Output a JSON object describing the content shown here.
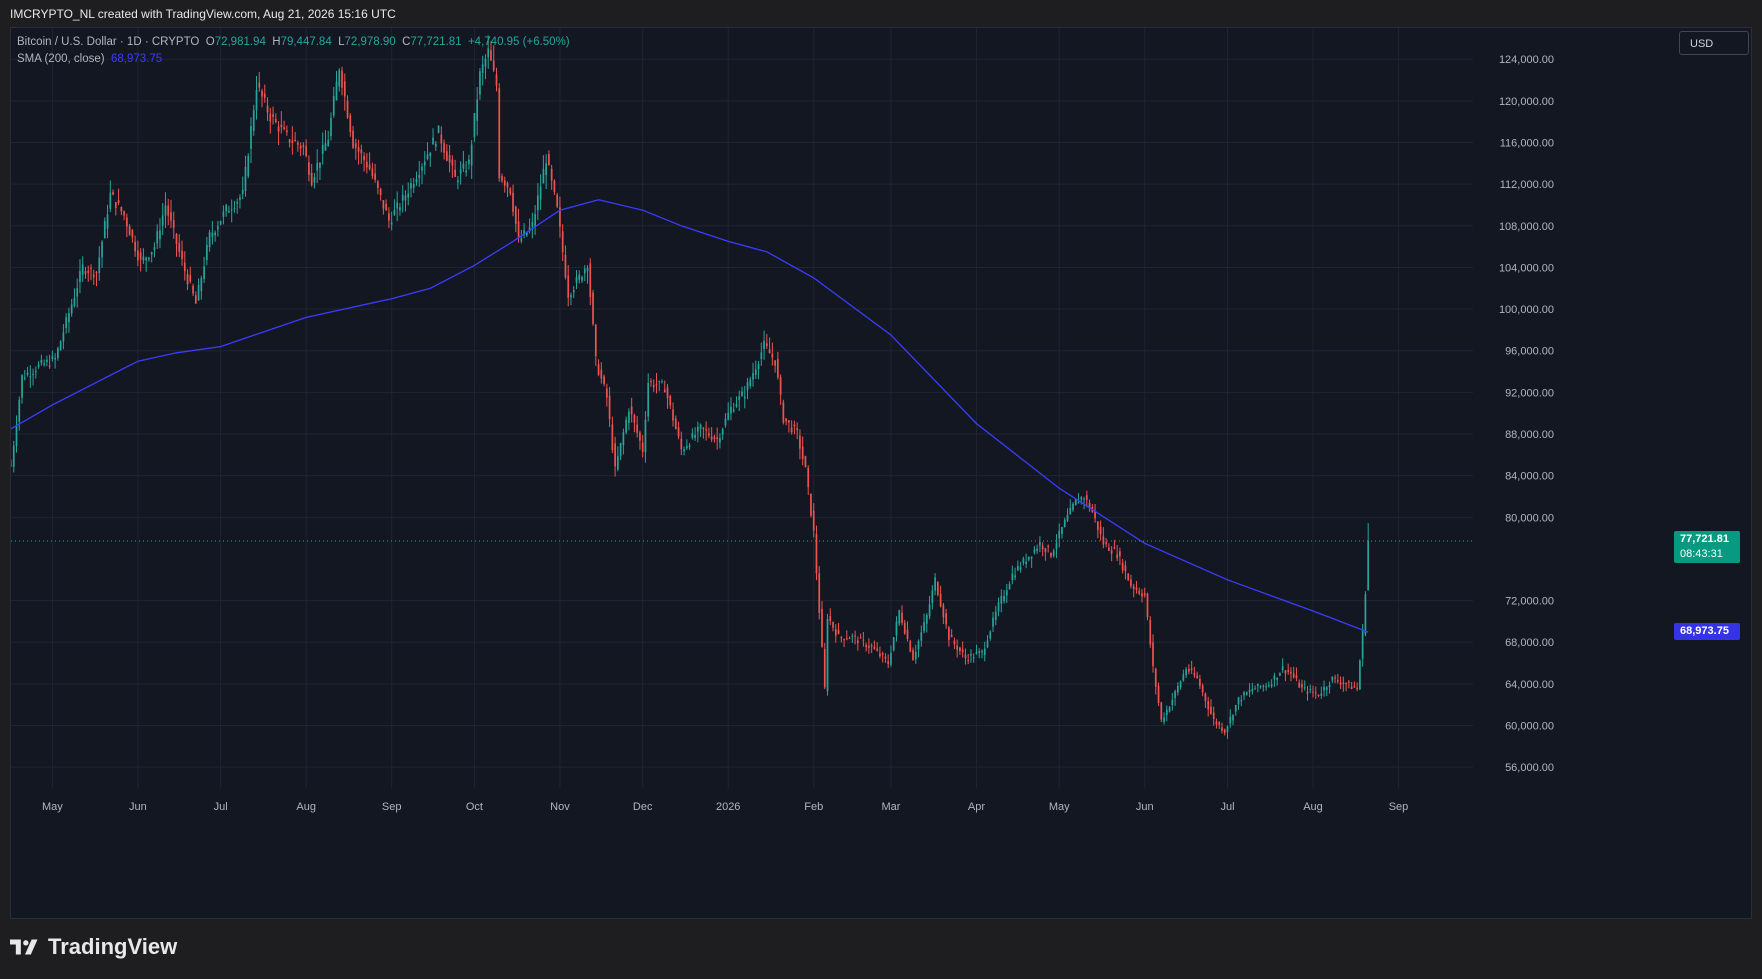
{
  "header": {
    "attribution": "IMCRYPTO_NL created with TradingView.com, Aug 21, 2026 15:16 UTC"
  },
  "legend": {
    "symbol": "Bitcoin / U.S. Dollar · 1D · CRYPTO",
    "o_label": "O",
    "o_value": "72,981.94",
    "h_label": "H",
    "h_value": "79,447.84",
    "l_label": "L",
    "l_value": "72,978.90",
    "c_label": "C",
    "c_value": "77,721.81",
    "change": "+4,740.95 (+6.50%)",
    "sma_label": "SMA (200, close)",
    "sma_value": "68,973.75"
  },
  "currency_button": "USD",
  "last_price": {
    "value": "77,721.81",
    "countdown": "08:43:31"
  },
  "sma_price": "68,973.75",
  "brand": "TradingView",
  "colors": {
    "up": "#26a69a",
    "down": "#ef5350",
    "sma": "#3c3cff",
    "background": "#131722",
    "grid": "#1f2433",
    "text": "#b2b5be"
  },
  "chart_data": {
    "type": "candlestick",
    "title": "Bitcoin / U.S. Dollar · 1D · CRYPTO",
    "ylim": [
      54000,
      127000
    ],
    "yticks": [
      124000,
      120000,
      116000,
      112000,
      108000,
      104000,
      100000,
      96000,
      92000,
      88000,
      84000,
      80000,
      72000,
      68000,
      64000,
      60000,
      56000
    ],
    "ytick_labels": [
      "124,000.00",
      "120,000.00",
      "116,000.00",
      "112,000.00",
      "108,000.00",
      "104,000.00",
      "100,000.00",
      "96,000.00",
      "92,000.00",
      "88,000.00",
      "84,000.00",
      "80,000.00",
      "72,000.00",
      "68,000.00",
      "64,000.00",
      "60,000.00",
      "56,000.00"
    ],
    "xrange": [
      "2025-04-16",
      "2026-09-28"
    ],
    "xticks": [
      {
        "date": "2025-05-01",
        "label": "May"
      },
      {
        "date": "2025-06-01",
        "label": "Jun"
      },
      {
        "date": "2025-07-01",
        "label": "Jul"
      },
      {
        "date": "2025-08-01",
        "label": "Aug"
      },
      {
        "date": "2025-09-01",
        "label": "Sep"
      },
      {
        "date": "2025-10-01",
        "label": "Oct"
      },
      {
        "date": "2025-11-01",
        "label": "Nov"
      },
      {
        "date": "2025-12-01",
        "label": "Dec"
      },
      {
        "date": "2026-01-01",
        "label": "2026"
      },
      {
        "date": "2026-02-01",
        "label": "Feb"
      },
      {
        "date": "2026-03-01",
        "label": "Mar"
      },
      {
        "date": "2026-04-01",
        "label": "Apr"
      },
      {
        "date": "2026-05-01",
        "label": "May"
      },
      {
        "date": "2026-06-01",
        "label": "Jun"
      },
      {
        "date": "2026-07-01",
        "label": "Jul"
      },
      {
        "date": "2026-08-01",
        "label": "Aug"
      },
      {
        "date": "2026-09-01",
        "label": "Sep"
      }
    ],
    "close_series": [
      {
        "date": "2025-04-16",
        "close": 85000
      },
      {
        "date": "2025-04-20",
        "close": 93500
      },
      {
        "date": "2025-04-26",
        "close": 94500
      },
      {
        "date": "2025-05-02",
        "close": 95200
      },
      {
        "date": "2025-05-08",
        "close": 100500
      },
      {
        "date": "2025-05-12",
        "close": 104000
      },
      {
        "date": "2025-05-17",
        "close": 103500
      },
      {
        "date": "2025-05-22",
        "close": 111000
      },
      {
        "date": "2025-05-27",
        "close": 109000
      },
      {
        "date": "2025-06-02",
        "close": 104500
      },
      {
        "date": "2025-06-07",
        "close": 106000
      },
      {
        "date": "2025-06-11",
        "close": 110000
      },
      {
        "date": "2025-06-17",
        "close": 104500
      },
      {
        "date": "2025-06-22",
        "close": 100500
      },
      {
        "date": "2025-06-27",
        "close": 107000
      },
      {
        "date": "2025-07-03",
        "close": 109500
      },
      {
        "date": "2025-07-09",
        "close": 111000
      },
      {
        "date": "2025-07-14",
        "close": 121500
      },
      {
        "date": "2025-07-19",
        "close": 118500
      },
      {
        "date": "2025-07-25",
        "close": 116500
      },
      {
        "date": "2025-07-31",
        "close": 115500
      },
      {
        "date": "2025-08-03",
        "close": 112500
      },
      {
        "date": "2025-08-09",
        "close": 116500
      },
      {
        "date": "2025-08-13",
        "close": 123300
      },
      {
        "date": "2025-08-18",
        "close": 116000
      },
      {
        "date": "2025-08-24",
        "close": 113500
      },
      {
        "date": "2025-08-31",
        "close": 108500
      },
      {
        "date": "2025-09-05",
        "close": 110500
      },
      {
        "date": "2025-09-10",
        "close": 113000
      },
      {
        "date": "2025-09-15",
        "close": 115500
      },
      {
        "date": "2025-09-18",
        "close": 117000
      },
      {
        "date": "2025-09-24",
        "close": 112500
      },
      {
        "date": "2025-09-29",
        "close": 114000
      },
      {
        "date": "2025-10-03",
        "close": 122500
      },
      {
        "date": "2025-10-06",
        "close": 124700
      },
      {
        "date": "2025-10-09",
        "close": 121500
      },
      {
        "date": "2025-10-10",
        "close": 113000
      },
      {
        "date": "2025-10-14",
        "close": 111500
      },
      {
        "date": "2025-10-17",
        "close": 106500
      },
      {
        "date": "2025-10-22",
        "close": 108000
      },
      {
        "date": "2025-10-27",
        "close": 114500
      },
      {
        "date": "2025-10-31",
        "close": 109500
      },
      {
        "date": "2025-11-04",
        "close": 101500
      },
      {
        "date": "2025-11-08",
        "close": 103000
      },
      {
        "date": "2025-11-11",
        "close": 104500
      },
      {
        "date": "2025-11-14",
        "close": 95000
      },
      {
        "date": "2025-11-18",
        "close": 91500
      },
      {
        "date": "2025-11-21",
        "close": 84500
      },
      {
        "date": "2025-11-26",
        "close": 90500
      },
      {
        "date": "2025-12-01",
        "close": 86500
      },
      {
        "date": "2025-12-03",
        "close": 93000
      },
      {
        "date": "2025-12-09",
        "close": 92500
      },
      {
        "date": "2025-12-15",
        "close": 86500
      },
      {
        "date": "2025-12-22",
        "close": 88500
      },
      {
        "date": "2025-12-28",
        "close": 87500
      },
      {
        "date": "2026-01-02",
        "close": 90500
      },
      {
        "date": "2026-01-07",
        "close": 92000
      },
      {
        "date": "2026-01-14",
        "close": 96500
      },
      {
        "date": "2026-01-18",
        "close": 95000
      },
      {
        "date": "2026-01-21",
        "close": 89500
      },
      {
        "date": "2026-01-26",
        "close": 88000
      },
      {
        "date": "2026-01-29",
        "close": 84500
      },
      {
        "date": "2026-02-01",
        "close": 78500
      },
      {
        "date": "2026-02-05",
        "close": 63500
      },
      {
        "date": "2026-02-06",
        "close": 70500
      },
      {
        "date": "2026-02-10",
        "close": 68500
      },
      {
        "date": "2026-02-15",
        "close": 68500
      },
      {
        "date": "2026-02-22",
        "close": 67500
      },
      {
        "date": "2026-02-28",
        "close": 66000
      },
      {
        "date": "2026-03-04",
        "close": 71000
      },
      {
        "date": "2026-03-09",
        "close": 66500
      },
      {
        "date": "2026-03-14",
        "close": 70500
      },
      {
        "date": "2026-03-17",
        "close": 74000
      },
      {
        "date": "2026-03-22",
        "close": 68500
      },
      {
        "date": "2026-03-28",
        "close": 66500
      },
      {
        "date": "2026-04-03",
        "close": 67000
      },
      {
        "date": "2026-04-09",
        "close": 71500
      },
      {
        "date": "2026-04-14",
        "close": 74500
      },
      {
        "date": "2026-04-19",
        "close": 76000
      },
      {
        "date": "2026-04-24",
        "close": 77500
      },
      {
        "date": "2026-04-28",
        "close": 76500
      },
      {
        "date": "2026-05-03",
        "close": 79500
      },
      {
        "date": "2026-05-07",
        "close": 81500
      },
      {
        "date": "2026-05-10",
        "close": 82000
      },
      {
        "date": "2026-05-13",
        "close": 80500
      },
      {
        "date": "2026-05-17",
        "close": 77500
      },
      {
        "date": "2026-05-22",
        "close": 76500
      },
      {
        "date": "2026-05-27",
        "close": 73500
      },
      {
        "date": "2026-06-01",
        "close": 72500
      },
      {
        "date": "2026-06-04",
        "close": 65500
      },
      {
        "date": "2026-06-07",
        "close": 60500
      },
      {
        "date": "2026-06-11",
        "close": 62500
      },
      {
        "date": "2026-06-16",
        "close": 65500
      },
      {
        "date": "2026-06-20",
        "close": 64500
      },
      {
        "date": "2026-06-26",
        "close": 60500
      },
      {
        "date": "2026-06-30",
        "close": 59500
      },
      {
        "date": "2026-07-05",
        "close": 62500
      },
      {
        "date": "2026-07-10",
        "close": 63500
      },
      {
        "date": "2026-07-16",
        "close": 64000
      },
      {
        "date": "2026-07-21",
        "close": 65500
      },
      {
        "date": "2026-07-24",
        "close": 65000
      },
      {
        "date": "2026-07-28",
        "close": 63500
      },
      {
        "date": "2026-08-03",
        "close": 63000
      },
      {
        "date": "2026-08-08",
        "close": 64500
      },
      {
        "date": "2026-08-13",
        "close": 64000
      },
      {
        "date": "2026-08-17",
        "close": 63500
      },
      {
        "date": "2026-08-19",
        "close": 69000
      },
      {
        "date": "2026-08-20",
        "close": 72982
      },
      {
        "date": "2026-08-21",
        "close": 77721.81
      }
    ],
    "sma_series": [
      {
        "date": "2025-04-16",
        "value": 88500
      },
      {
        "date": "2025-05-01",
        "value": 90800
      },
      {
        "date": "2025-06-01",
        "value": 95000
      },
      {
        "date": "2025-06-15",
        "value": 95800
      },
      {
        "date": "2025-07-01",
        "value": 96400
      },
      {
        "date": "2025-08-01",
        "value": 99200
      },
      {
        "date": "2025-09-01",
        "value": 101000
      },
      {
        "date": "2025-09-15",
        "value": 102000
      },
      {
        "date": "2025-10-01",
        "value": 104200
      },
      {
        "date": "2025-10-15",
        "value": 106500
      },
      {
        "date": "2025-11-01",
        "value": 109500
      },
      {
        "date": "2025-11-15",
        "value": 110500
      },
      {
        "date": "2025-12-01",
        "value": 109500
      },
      {
        "date": "2025-12-15",
        "value": 108000
      },
      {
        "date": "2026-01-01",
        "value": 106500
      },
      {
        "date": "2026-01-15",
        "value": 105500
      },
      {
        "date": "2026-02-01",
        "value": 103000
      },
      {
        "date": "2026-03-01",
        "value": 97500
      },
      {
        "date": "2026-04-01",
        "value": 89000
      },
      {
        "date": "2026-05-01",
        "value": 82800
      },
      {
        "date": "2026-06-01",
        "value": 77500
      },
      {
        "date": "2026-07-01",
        "value": 74000
      },
      {
        "date": "2026-08-01",
        "value": 71000
      },
      {
        "date": "2026-08-21",
        "value": 68973.75
      }
    ],
    "last_value": 77721.81,
    "sma_last_value": 68973.75,
    "grid": true
  }
}
